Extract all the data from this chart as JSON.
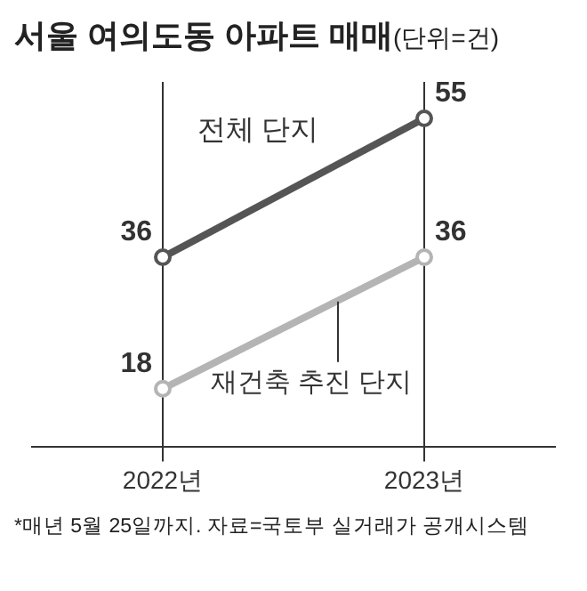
{
  "chart_data": {
    "type": "line",
    "title": "서울 여의도동 아파트 매매",
    "subtitle": "(단위=건)",
    "categories": [
      "2022년",
      "2023년"
    ],
    "series": [
      {
        "name": "전체 단지",
        "color": "#555555",
        "values": [
          36,
          55
        ]
      },
      {
        "name": "재건축 추진 단지",
        "color": "#b4b4b4",
        "values": [
          18,
          36
        ]
      }
    ],
    "data_labels": true,
    "marker": "circle",
    "line_style": "solid",
    "grid": "x",
    "legend": false,
    "annotations": [
      "*매년 5월 25일까지. 자료=국토부 실거래가 공개시스템"
    ]
  }
}
